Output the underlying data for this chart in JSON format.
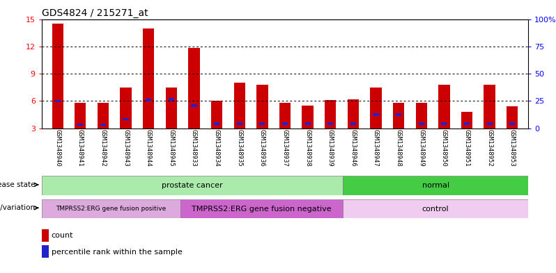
{
  "title": "GDS4824 / 215271_at",
  "samples": [
    "GSM1348940",
    "GSM1348941",
    "GSM1348942",
    "GSM1348943",
    "GSM1348944",
    "GSM1348945",
    "GSM1348933",
    "GSM1348934",
    "GSM1348935",
    "GSM1348936",
    "GSM1348937",
    "GSM1348938",
    "GSM1348939",
    "GSM1348946",
    "GSM1348947",
    "GSM1348948",
    "GSM1348949",
    "GSM1348950",
    "GSM1348951",
    "GSM1348952",
    "GSM1348953"
  ],
  "count_values": [
    14.5,
    5.8,
    5.8,
    7.5,
    14.0,
    7.5,
    11.8,
    6.0,
    8.0,
    7.8,
    5.8,
    5.5,
    6.1,
    6.2,
    7.5,
    5.8,
    5.8,
    7.8,
    4.8,
    7.8,
    5.4
  ],
  "percentile_values": [
    6.0,
    3.4,
    3.4,
    4.0,
    6.1,
    6.2,
    5.5,
    3.5,
    3.5,
    3.5,
    3.5,
    3.5,
    3.5,
    3.5,
    4.5,
    4.5,
    3.5,
    3.5,
    3.5,
    3.5,
    3.5
  ],
  "bar_color": "#cc0000",
  "percentile_color": "#2222cc",
  "ylim_left": [
    3,
    15
  ],
  "ylim_right": [
    0,
    100
  ],
  "yticks_left": [
    3,
    6,
    9,
    12,
    15
  ],
  "yticks_right": [
    0,
    25,
    50,
    75,
    100
  ],
  "ytick_labels_right": [
    "0",
    "25",
    "50",
    "75",
    "100%"
  ],
  "grid_lines": [
    6,
    9,
    12
  ],
  "disease_state_groups": [
    {
      "label": "prostate cancer",
      "start": 0,
      "end": 13,
      "color": "#aaeaaa"
    },
    {
      "label": "normal",
      "start": 13,
      "end": 21,
      "color": "#44cc44"
    }
  ],
  "genotype_groups": [
    {
      "label": "TMPRSS2:ERG gene fusion positive",
      "start": 0,
      "end": 6,
      "color": "#ddaadd"
    },
    {
      "label": "TMPRSS2:ERG gene fusion negative",
      "start": 6,
      "end": 13,
      "color": "#cc66cc"
    },
    {
      "label": "control",
      "start": 13,
      "end": 21,
      "color": "#f0ccf0"
    }
  ],
  "legend_count_color": "#cc0000",
  "legend_percentile_color": "#2222cc",
  "bar_width": 0.5,
  "percentile_bar_width": 0.25,
  "base_value": 3.0,
  "xtick_bg_color": "#cccccc"
}
